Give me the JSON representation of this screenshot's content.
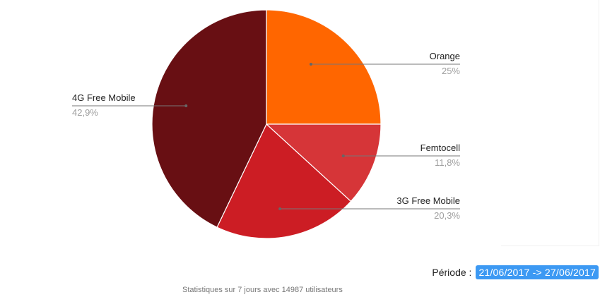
{
  "chart_data": {
    "type": "pie",
    "categories": [
      "Orange",
      "Femtocell",
      "3G Free Mobile",
      "4G Free Mobile"
    ],
    "values": [
      25,
      11.8,
      20.3,
      42.9
    ],
    "value_labels": [
      "25%",
      "11,8%",
      "20,3%",
      "42,9%"
    ],
    "colors": [
      "#ff6600",
      "#d63538",
      "#cc1d24",
      "#680f13"
    ],
    "start_angle_deg": 0,
    "direction": "clockwise",
    "legend": "labels beside slices"
  },
  "period": {
    "label": "Période :",
    "value": "21/06/2017 -> 27/06/2017"
  },
  "footer": {
    "stats_text": "Statistiques sur 7 jours avec 14987 utilisateurs"
  }
}
